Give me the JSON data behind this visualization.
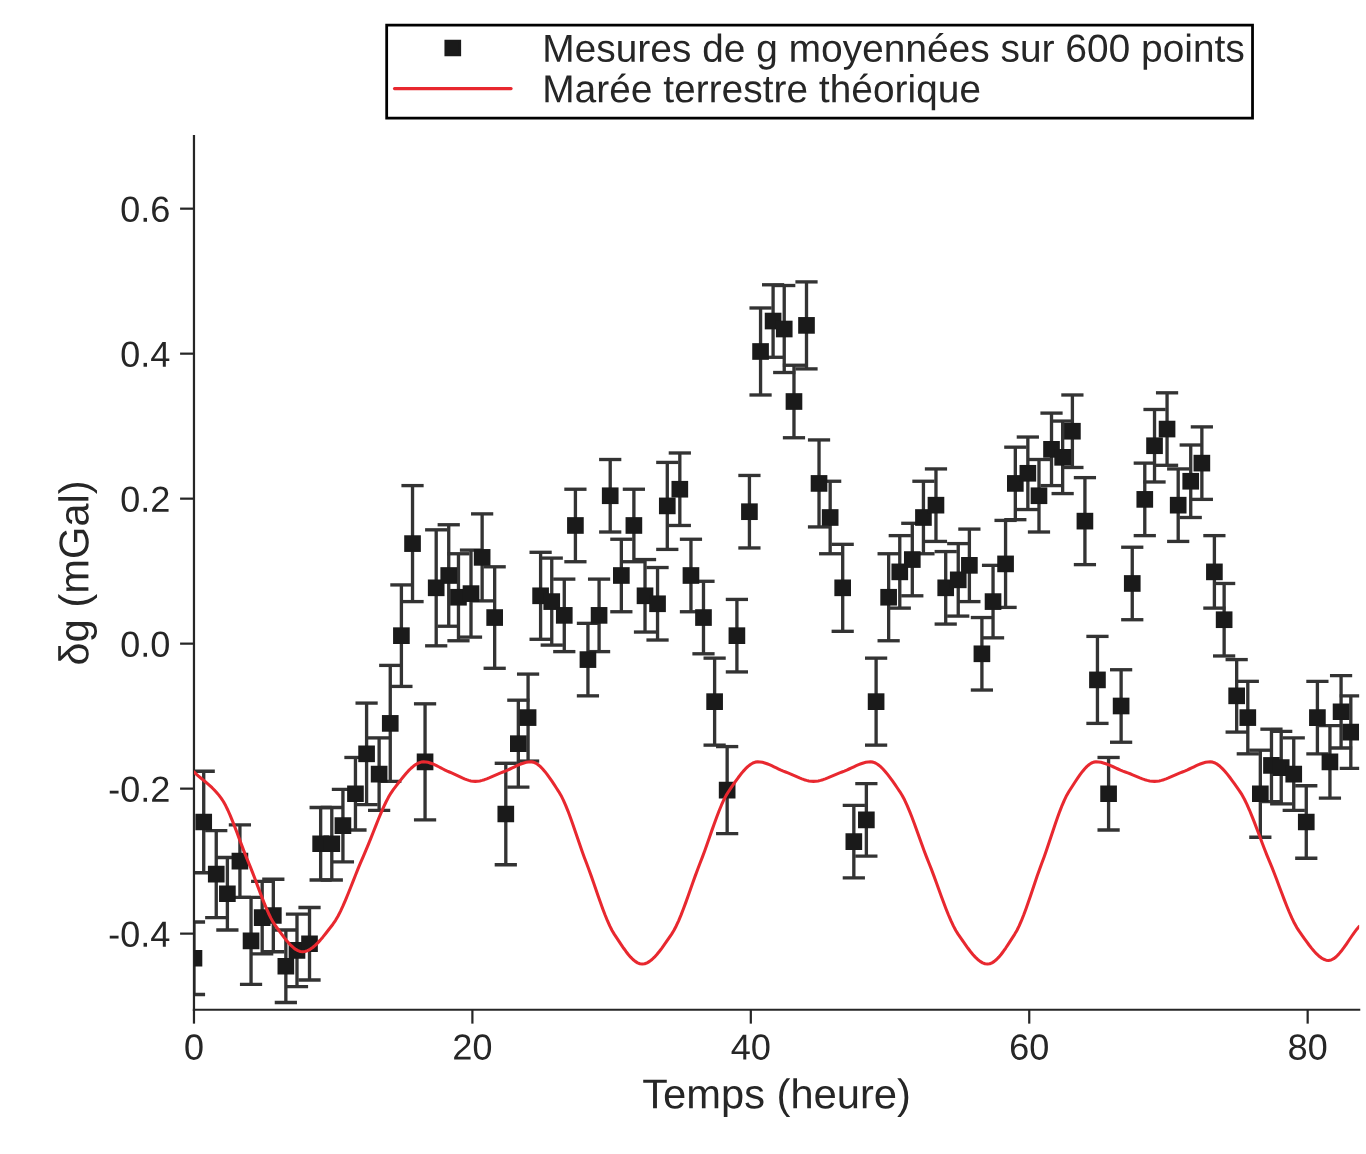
{
  "chart_data": {
    "type": "scatter",
    "xlabel": "Temps (heure)",
    "ylabel": "δg (mGal)",
    "xlim": [
      0,
      83.7
    ],
    "ylim": [
      -0.505,
      0.7
    ],
    "xticks": [
      0,
      20,
      40,
      60,
      80
    ],
    "yticks": [
      {
        "value": -0.4,
        "label": "-0.4"
      },
      {
        "value": -0.2,
        "label": "-0.2"
      },
      {
        "value": 0.0,
        "label": "0.0"
      },
      {
        "value": 0.2,
        "label": "0.2"
      },
      {
        "value": 0.4,
        "label": "0.4"
      },
      {
        "value": 0.6,
        "label": "0.6"
      }
    ],
    "grid": false,
    "legend": "top",
    "marker": "square",
    "series": [
      {
        "name": "Mesures de g moyennées sur 600 points",
        "color": "#1a1a1a",
        "x": [
          0.0,
          0.7,
          1.6,
          2.4,
          3.3,
          4.1,
          4.9,
          5.7,
          6.6,
          7.4,
          8.3,
          9.1,
          9.9,
          10.7,
          11.6,
          12.4,
          13.3,
          14.1,
          14.9,
          15.7,
          16.6,
          17.4,
          18.3,
          19.0,
          19.9,
          20.7,
          21.6,
          22.4,
          23.3,
          24.0,
          24.9,
          25.7,
          26.6,
          27.4,
          28.3,
          29.1,
          29.9,
          30.7,
          31.6,
          32.4,
          33.3,
          34.0,
          34.9,
          35.7,
          36.6,
          37.4,
          38.3,
          39.0,
          39.9,
          40.7,
          41.6,
          42.4,
          43.1,
          44.0,
          44.9,
          45.7,
          46.6,
          47.4,
          48.3,
          49.0,
          49.9,
          50.7,
          51.6,
          52.4,
          53.3,
          54.0,
          54.9,
          55.7,
          56.6,
          57.4,
          58.3,
          59.0,
          59.9,
          60.7,
          61.6,
          62.4,
          63.1,
          64.0,
          64.9,
          65.7,
          66.6,
          67.4,
          68.3,
          69.0,
          69.9,
          70.7,
          71.6,
          72.4,
          73.3,
          74.0,
          74.9,
          75.7,
          76.6,
          77.4,
          78.1,
          79.0,
          79.9,
          80.7,
          81.6,
          82.4,
          83.1
        ],
        "values": [
          -0.434,
          -0.246,
          -0.318,
          -0.345,
          -0.3,
          -0.41,
          -0.378,
          -0.375,
          -0.445,
          -0.423,
          -0.414,
          -0.276,
          -0.276,
          -0.251,
          -0.207,
          -0.152,
          -0.18,
          -0.11,
          0.011,
          0.138,
          -0.163,
          0.077,
          0.094,
          0.064,
          0.069,
          0.119,
          0.036,
          -0.235,
          -0.138,
          -0.102,
          0.066,
          0.058,
          0.039,
          0.163,
          -0.022,
          0.039,
          0.204,
          0.094,
          0.163,
          0.066,
          0.055,
          0.19,
          0.213,
          0.094,
          0.036,
          -0.08,
          -0.202,
          0.011,
          0.182,
          0.403,
          0.445,
          0.434,
          0.334,
          0.439,
          0.221,
          0.174,
          0.077,
          -0.273,
          -0.243,
          -0.08,
          0.064,
          0.099,
          0.116,
          0.174,
          0.191,
          0.077,
          0.088,
          0.108,
          -0.014,
          0.058,
          0.11,
          0.221,
          0.235,
          0.204,
          0.268,
          0.257,
          0.293,
          0.169,
          -0.05,
          -0.207,
          -0.086,
          0.083,
          0.199,
          0.273,
          0.296,
          0.191,
          0.224,
          0.249,
          0.099,
          0.033,
          -0.072,
          -0.102,
          -0.207,
          -0.168,
          -0.171,
          -0.18,
          -0.246,
          -0.102,
          -0.163,
          -0.094,
          -0.122
        ],
        "errors": [
          0.05,
          0.07,
          0.06,
          0.05,
          0.05,
          0.06,
          0.05,
          0.05,
          0.05,
          0.05,
          0.05,
          0.05,
          0.05,
          0.05,
          0.05,
          0.07,
          0.05,
          0.08,
          0.07,
          0.08,
          0.08,
          0.08,
          0.07,
          0.06,
          0.06,
          0.06,
          0.07,
          0.07,
          0.06,
          0.06,
          0.06,
          0.06,
          0.05,
          0.05,
          0.05,
          0.05,
          0.05,
          0.05,
          0.05,
          0.05,
          0.05,
          0.06,
          0.05,
          0.05,
          0.05,
          0.06,
          0.06,
          0.05,
          0.05,
          0.06,
          0.05,
          0.06,
          0.05,
          0.06,
          0.06,
          0.05,
          0.06,
          0.05,
          0.05,
          0.06,
          0.06,
          0.05,
          0.05,
          0.05,
          0.05,
          0.05,
          0.05,
          0.05,
          0.05,
          0.05,
          0.06,
          0.05,
          0.05,
          0.05,
          0.05,
          0.05,
          0.05,
          0.06,
          0.06,
          0.05,
          0.05,
          0.05,
          0.05,
          0.05,
          0.05,
          0.05,
          0.05,
          0.05,
          0.05,
          0.05,
          0.05,
          0.05,
          0.06,
          0.05,
          0.05,
          0.05,
          0.05,
          0.05,
          0.05,
          0.05,
          0.05
        ]
      },
      {
        "name": "Marée terrestre théorique",
        "type": "line",
        "color": "#e8282f",
        "marker": "none",
        "line_style": "solid",
        "x": [
          0,
          1.95,
          3.9,
          5.85,
          7.8,
          9.98,
          12.15,
          14.33,
          16.5,
          18.35,
          20.2,
          22.2,
          24.2,
          26.2,
          28.2,
          30.2,
          32.2,
          34.3,
          36.35,
          38.4,
          40.5,
          42.5,
          44.5,
          46.55,
          48.6,
          50.7,
          52.8,
          54.9,
          57.0,
          58.95,
          60.9,
          62.85,
          64.8,
          66.9,
          69.0,
          71.0,
          73.0,
          75.1,
          77.25,
          79.4,
          81.5,
          83.7
        ],
        "values": [
          -0.177,
          -0.213,
          -0.301,
          -0.389,
          -0.425,
          -0.387,
          -0.294,
          -0.201,
          -0.163,
          -0.177,
          -0.19,
          -0.177,
          -0.163,
          -0.204,
          -0.303,
          -0.401,
          -0.442,
          -0.401,
          -0.303,
          -0.204,
          -0.163,
          -0.177,
          -0.19,
          -0.177,
          -0.163,
          -0.204,
          -0.303,
          -0.401,
          -0.442,
          -0.401,
          -0.303,
          -0.204,
          -0.163,
          -0.177,
          -0.19,
          -0.177,
          -0.163,
          -0.203,
          -0.3,
          -0.397,
          -0.437,
          -0.39
        ]
      }
    ]
  }
}
